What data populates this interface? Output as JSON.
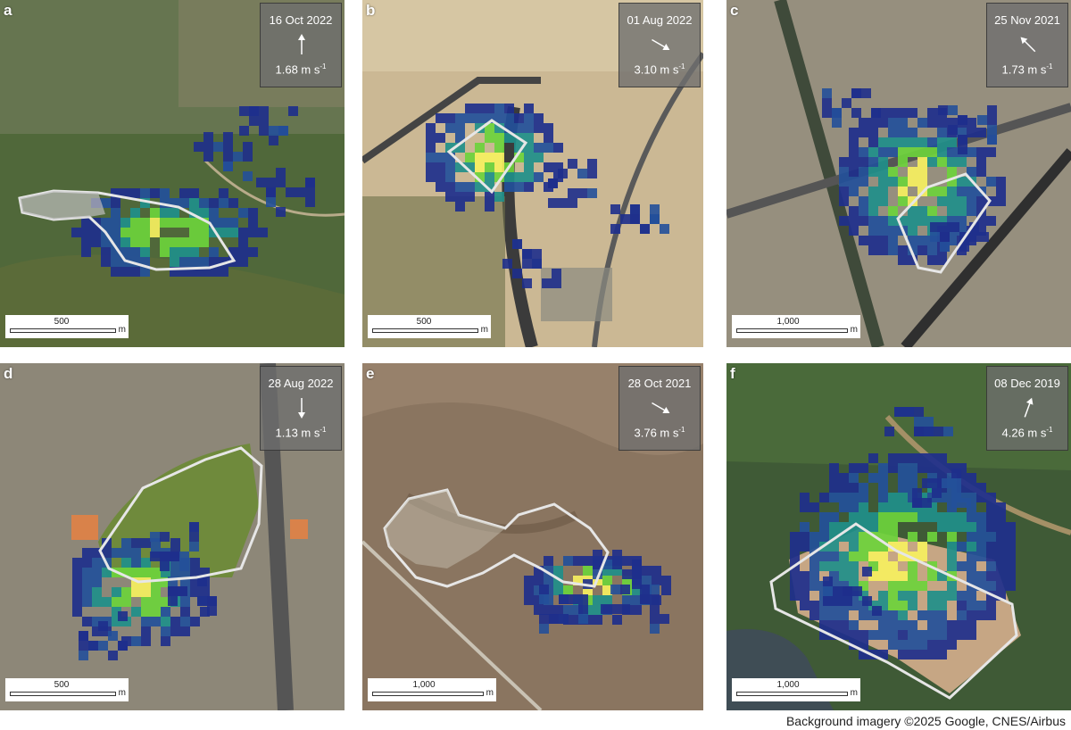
{
  "credit": "Background imagery ©2025 Google, CNES/Airbus",
  "panels": [
    {
      "letter": "a",
      "date": "16 Oct 2022",
      "speed": "1.68 m s",
      "speed_exp": "-1",
      "wind_direction_deg": 0,
      "scale_value": "500",
      "scale_unit": "m",
      "background": "#4f6a3a"
    },
    {
      "letter": "b",
      "date": "01 Aug 2022",
      "speed": "3.10 m s",
      "speed_exp": "-1",
      "wind_direction_deg": 120,
      "scale_value": "500",
      "scale_unit": "m",
      "background": "#cbb894"
    },
    {
      "letter": "c",
      "date": "25 Nov 2021",
      "speed": "1.73 m s",
      "speed_exp": "-1",
      "wind_direction_deg": 315,
      "scale_value": "1,000",
      "scale_unit": "m",
      "background": "#8c8878"
    },
    {
      "letter": "d",
      "date": "28 Aug 2022",
      "speed": "1.13 m s",
      "speed_exp": "-1",
      "wind_direction_deg": 180,
      "scale_value": "500",
      "scale_unit": "m",
      "background": "#8d8778"
    },
    {
      "letter": "e",
      "date": "28 Oct 2021",
      "speed": "3.76 m s",
      "speed_exp": "-1",
      "wind_direction_deg": 120,
      "scale_value": "1,000",
      "scale_unit": "m",
      "background": "#8a7560"
    },
    {
      "letter": "f",
      "date": "08 Dec 2019",
      "speed": "4.26 m s",
      "speed_exp": "-1",
      "wind_direction_deg": 20,
      "scale_value": "1,000",
      "scale_unit": "m",
      "background": "#3f5a36"
    }
  ],
  "colors": {
    "plume_low": "#1e2f8c",
    "plume_mid": "#1f8f8a",
    "plume_high": "#6dd23c",
    "plume_peak": "#f6f060",
    "outline": "#e6e6e6"
  }
}
